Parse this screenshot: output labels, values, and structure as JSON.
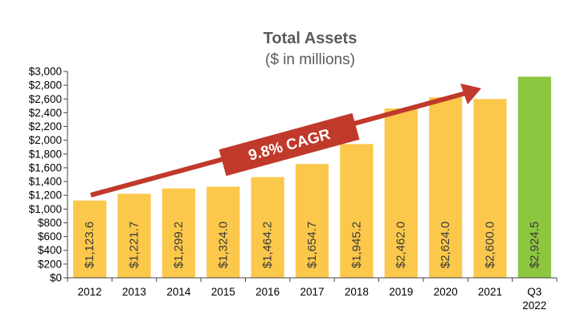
{
  "chart_data": {
    "type": "bar",
    "title": "Total Assets",
    "subtitle": "($ in millions)",
    "categories": [
      "2012",
      "2013",
      "2014",
      "2015",
      "2016",
      "2017",
      "2018",
      "2019",
      "2020",
      "2021",
      "Q3\n2022"
    ],
    "values": [
      1123.6,
      1221.7,
      1299.2,
      1324.0,
      1464.2,
      1654.7,
      1945.2,
      2462.0,
      2624.0,
      2600.0,
      2924.5
    ],
    "value_labels": [
      "$1,123.6",
      "$1,221.7",
      "$1,299.2",
      "$1,324.0",
      "$1,464.2",
      "$1,654.7",
      "$1,945.2",
      "$2,462.0",
      "$2,624.0",
      "$2,600.0",
      "$2,924.5"
    ],
    "ylim": [
      0,
      3000
    ],
    "y_ticks": [
      0,
      200,
      400,
      600,
      800,
      1000,
      1200,
      1400,
      1600,
      1800,
      2000,
      2200,
      2400,
      2600,
      2800,
      3000
    ],
    "y_tick_labels": [
      "$0",
      "$200",
      "$400",
      "$600",
      "$800",
      "$1,000",
      "$1,200",
      "$1,400",
      "$1,600",
      "$1,800",
      "$2,000",
      "$2,200",
      "$2,400",
      "$2,600",
      "$2,800",
      "$3,000"
    ],
    "annotation": "9.8% CAGR",
    "grid": false,
    "colors": {
      "bar": "#fbc84b",
      "bar_highlight": "#8dc63f",
      "arrow": "#c0392b",
      "title": "#5a5a5a",
      "axis": "#444444"
    }
  }
}
